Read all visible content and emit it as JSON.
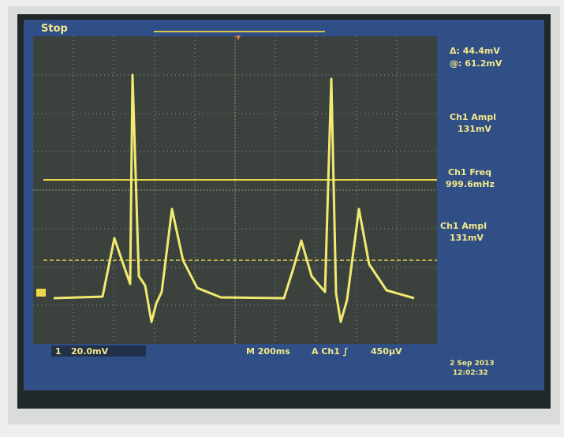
{
  "header": {
    "status": "Stop"
  },
  "cursor": {
    "delta": "Δ: 44.4mV",
    "at": "@: 61.2mV"
  },
  "measurements": [
    {
      "label": "Ch1 Ampl",
      "value": "131mV"
    },
    {
      "label": "Ch1 Freq",
      "value": "999.6mHz"
    },
    {
      "label": "Ch1 Ampl",
      "value": "131mV"
    }
  ],
  "footer": {
    "channel": "1",
    "scale": "20.0mV",
    "timebase": "M 200ms",
    "trigger": "A  Ch1  ∫",
    "trigger_level": "450µV",
    "date": "2 Sep 2013",
    "time": "12:02:32"
  }
}
